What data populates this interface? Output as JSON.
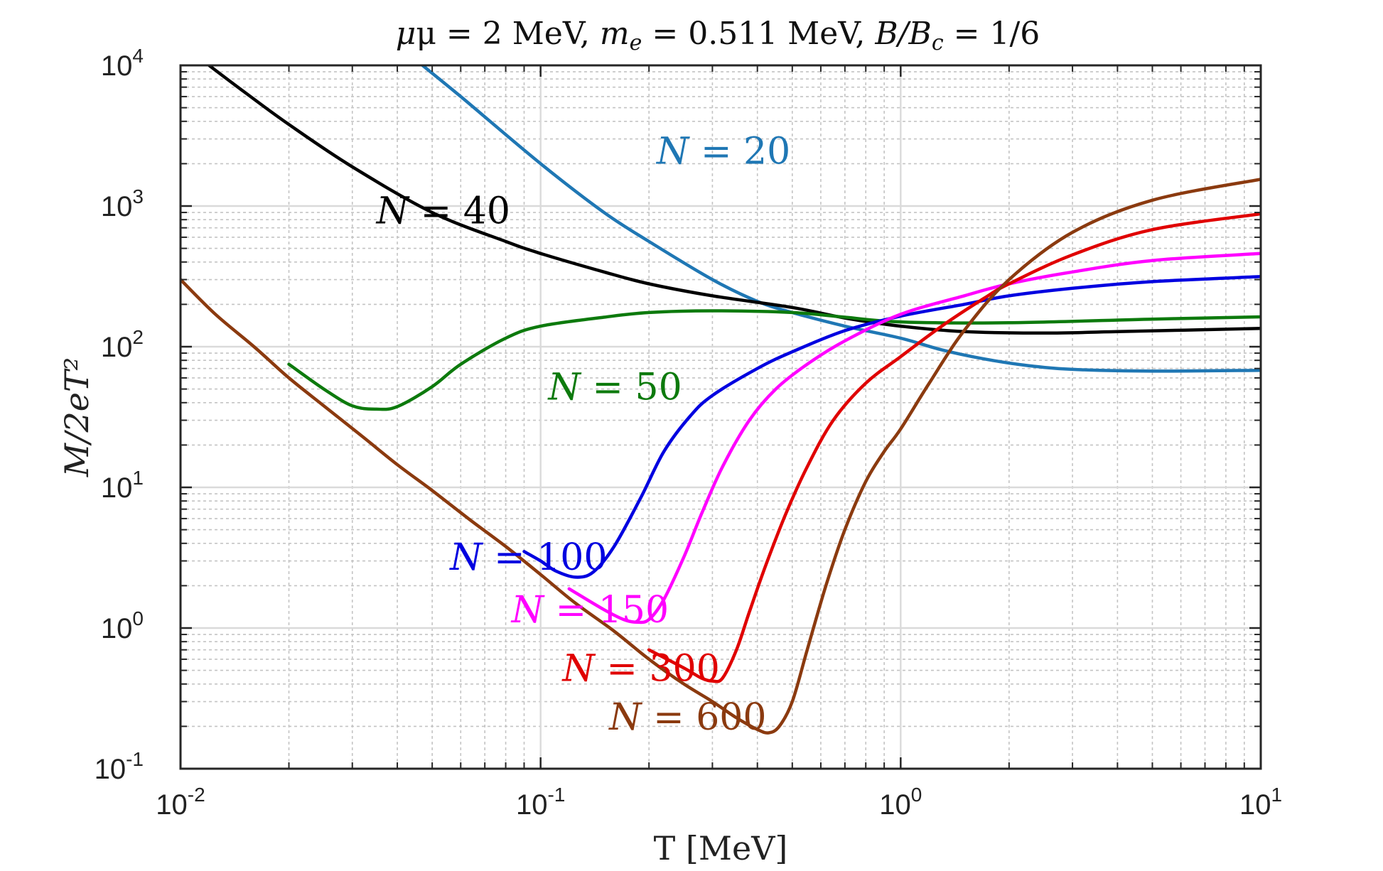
{
  "chart_data": {
    "type": "line",
    "title": "μ = 2 MeV, m_e = 0.511 MeV, B/B_c = 1/6",
    "title_parts": {
      "mu": "μ = 2 MeV, ",
      "me_symbol": "m",
      "me_sub": "e",
      "me_rest": " = 0.511 MeV, ",
      "b_part": "B/B",
      "bc_sub": "c",
      "b_rest": " = 1/6"
    },
    "xlabel": "T [MeV]",
    "ylabel": "M/2eT²",
    "x_scale": "log",
    "y_scale": "log",
    "xlim": [
      0.01,
      10
    ],
    "ylim": [
      0.1,
      10000
    ],
    "grid": true,
    "minor_grid": true,
    "x_ticks": [
      {
        "value": 0.01,
        "base": "10",
        "exp": "-2"
      },
      {
        "value": 0.1,
        "base": "10",
        "exp": "-1"
      },
      {
        "value": 1,
        "base": "10",
        "exp": "0"
      },
      {
        "value": 10,
        "base": "10",
        "exp": "1"
      }
    ],
    "y_ticks": [
      {
        "value": 0.1,
        "base": "10",
        "exp": "-1"
      },
      {
        "value": 1,
        "base": "10",
        "exp": "0"
      },
      {
        "value": 10,
        "base": "10",
        "exp": "1"
      },
      {
        "value": 100,
        "base": "10",
        "exp": "2"
      },
      {
        "value": 1000,
        "base": "10",
        "exp": "3"
      },
      {
        "value": 10000,
        "base": "10",
        "exp": "4"
      }
    ],
    "series": [
      {
        "name": "N = 20",
        "color": "#1f77b4",
        "label_pos": {
          "x": 0.21,
          "y": 2000
        },
        "points": [
          [
            0.047,
            10000
          ],
          [
            0.06,
            6000
          ],
          [
            0.1,
            2000
          ],
          [
            0.15,
            900
          ],
          [
            0.2,
            560
          ],
          [
            0.3,
            300
          ],
          [
            0.4,
            210
          ],
          [
            0.5,
            175
          ],
          [
            0.7,
            140
          ],
          [
            1.0,
            115
          ],
          [
            1.3,
            95
          ],
          [
            1.7,
            82
          ],
          [
            2.2,
            74
          ],
          [
            3.0,
            69
          ],
          [
            5.0,
            67
          ],
          [
            10.0,
            68
          ]
        ]
      },
      {
        "name": "N = 40",
        "color": "#000000",
        "label_pos": {
          "x": 0.035,
          "y": 750
        },
        "points": [
          [
            0.012,
            10000
          ],
          [
            0.015,
            6500
          ],
          [
            0.02,
            3800
          ],
          [
            0.03,
            1900
          ],
          [
            0.05,
            900
          ],
          [
            0.08,
            560
          ],
          [
            0.1,
            460
          ],
          [
            0.15,
            340
          ],
          [
            0.2,
            280
          ],
          [
            0.3,
            230
          ],
          [
            0.5,
            190
          ],
          [
            0.7,
            160
          ],
          [
            1.0,
            140
          ],
          [
            1.5,
            128
          ],
          [
            2.5,
            125
          ],
          [
            4.0,
            128
          ],
          [
            10.0,
            135
          ]
        ]
      },
      {
        "name": "N = 50",
        "color": "#0d7a0d",
        "label_pos": {
          "x": 0.105,
          "y": 42
        },
        "points": [
          [
            0.02,
            75
          ],
          [
            0.025,
            50
          ],
          [
            0.03,
            38
          ],
          [
            0.035,
            36
          ],
          [
            0.04,
            37.5
          ],
          [
            0.05,
            52
          ],
          [
            0.06,
            75
          ],
          [
            0.08,
            115
          ],
          [
            0.1,
            140
          ],
          [
            0.15,
            162
          ],
          [
            0.2,
            175
          ],
          [
            0.3,
            180
          ],
          [
            0.5,
            175
          ],
          [
            0.7,
            162
          ],
          [
            1.0,
            150
          ],
          [
            2.0,
            148
          ],
          [
            5.0,
            157
          ],
          [
            10.0,
            163
          ]
        ]
      },
      {
        "name": "N = 100",
        "color": "#0000e0",
        "label_pos": {
          "x": 0.056,
          "y": 2.6
        },
        "points": [
          [
            0.09,
            3.5
          ],
          [
            0.1,
            3.0
          ],
          [
            0.11,
            2.55
          ],
          [
            0.125,
            2.3
          ],
          [
            0.14,
            2.5
          ],
          [
            0.16,
            3.8
          ],
          [
            0.19,
            8.5
          ],
          [
            0.22,
            18
          ],
          [
            0.26,
            32
          ],
          [
            0.3,
            45
          ],
          [
            0.4,
            70
          ],
          [
            0.5,
            92
          ],
          [
            0.7,
            130
          ],
          [
            1.0,
            165
          ],
          [
            1.5,
            200
          ],
          [
            2.0,
            230
          ],
          [
            3.0,
            260
          ],
          [
            5.0,
            290
          ],
          [
            10.0,
            315
          ]
        ]
      },
      {
        "name": "N = 150",
        "color": "#ff00ff",
        "label_pos": {
          "x": 0.083,
          "y": 1.1
        },
        "points": [
          [
            0.12,
            1.9
          ],
          [
            0.15,
            1.35
          ],
          [
            0.17,
            1.15
          ],
          [
            0.185,
            1.1
          ],
          [
            0.2,
            1.15
          ],
          [
            0.22,
            1.6
          ],
          [
            0.25,
            3.2
          ],
          [
            0.28,
            6.5
          ],
          [
            0.32,
            14
          ],
          [
            0.38,
            30
          ],
          [
            0.45,
            50
          ],
          [
            0.55,
            75
          ],
          [
            0.7,
            110
          ],
          [
            1.0,
            170
          ],
          [
            1.5,
            230
          ],
          [
            2.0,
            280
          ],
          [
            3.0,
            340
          ],
          [
            5.0,
            410
          ],
          [
            10.0,
            460
          ]
        ]
      },
      {
        "name": "N = 300",
        "color": "#e00000",
        "label_pos": {
          "x": 0.115,
          "y": 0.42
        },
        "points": [
          [
            0.2,
            0.7
          ],
          [
            0.25,
            0.52
          ],
          [
            0.28,
            0.44
          ],
          [
            0.3,
            0.42
          ],
          [
            0.32,
            0.44
          ],
          [
            0.35,
            0.7
          ],
          [
            0.38,
            1.3
          ],
          [
            0.42,
            2.7
          ],
          [
            0.48,
            6.5
          ],
          [
            0.55,
            14
          ],
          [
            0.65,
            30
          ],
          [
            0.8,
            55
          ],
          [
            1.0,
            85
          ],
          [
            1.3,
            140
          ],
          [
            1.7,
            220
          ],
          [
            2.0,
            280
          ],
          [
            3.0,
            450
          ],
          [
            5.0,
            680
          ],
          [
            10.0,
            880
          ]
        ]
      },
      {
        "name": "N = 600",
        "color": "#8b3a0f",
        "label_pos": {
          "x": 0.155,
          "y": 0.19
        },
        "points": [
          [
            0.01,
            300
          ],
          [
            0.0125,
            170
          ],
          [
            0.016,
            100
          ],
          [
            0.02,
            60
          ],
          [
            0.025,
            38
          ],
          [
            0.032,
            23
          ],
          [
            0.04,
            14.5
          ],
          [
            0.05,
            9.5
          ],
          [
            0.063,
            6
          ],
          [
            0.08,
            3.8
          ],
          [
            0.1,
            2.4
          ],
          [
            0.125,
            1.5
          ],
          [
            0.16,
            0.95
          ],
          [
            0.2,
            0.6
          ],
          [
            0.25,
            0.4
          ],
          [
            0.3,
            0.3
          ],
          [
            0.35,
            0.23
          ],
          [
            0.4,
            0.19
          ],
          [
            0.43,
            0.18
          ],
          [
            0.46,
            0.2
          ],
          [
            0.5,
            0.3
          ],
          [
            0.55,
            0.7
          ],
          [
            0.62,
            2.0
          ],
          [
            0.7,
            5.0
          ],
          [
            0.8,
            11
          ],
          [
            0.9,
            18
          ],
          [
            1.0,
            26
          ],
          [
            1.2,
            55
          ],
          [
            1.5,
            130
          ],
          [
            2.0,
            300
          ],
          [
            3.0,
            650
          ],
          [
            5.0,
            1100
          ],
          [
            10.0,
            1550
          ]
        ]
      }
    ]
  }
}
